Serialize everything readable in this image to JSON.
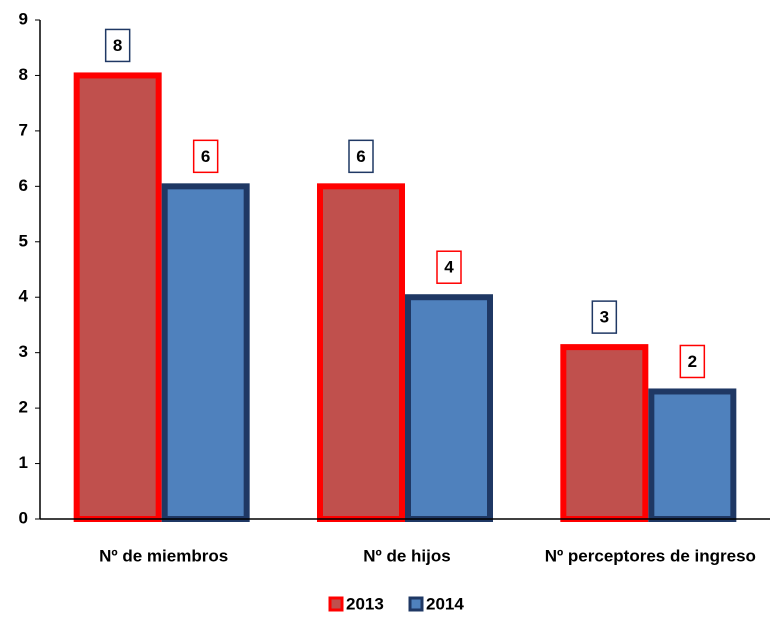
{
  "chart_data": {
    "type": "bar",
    "categories": [
      "Nº de miembros",
      "Nº de hijos",
      "Nº perceptores de ingreso"
    ],
    "series": [
      {
        "name": "2013",
        "color": "#c0504d",
        "stroke": "#ff0000",
        "values": [
          8,
          6,
          3.1
        ],
        "value_labels": [
          "8",
          "6",
          "3"
        ]
      },
      {
        "name": "2014",
        "color": "#4f81bd",
        "stroke": "#1f3864",
        "values": [
          6,
          4,
          2.3
        ],
        "value_labels": [
          "6",
          "4",
          "2"
        ]
      }
    ],
    "ylim": [
      0,
      9
    ],
    "yticks": [
      0,
      1,
      2,
      3,
      4,
      5,
      6,
      7,
      8,
      9
    ],
    "grid": false,
    "legend": "bottom"
  }
}
